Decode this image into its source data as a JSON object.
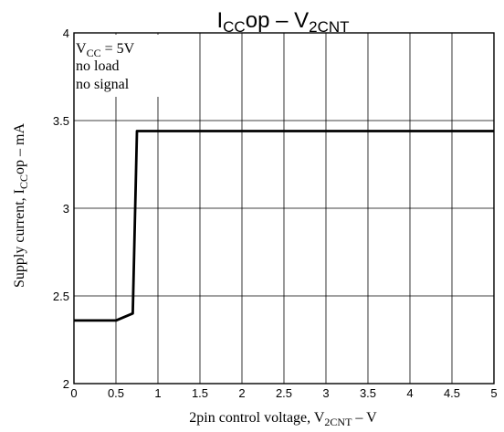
{
  "chart_data": {
    "type": "line",
    "title": {
      "main": "I",
      "sub": "CC",
      "tail": "op  –  V",
      "sub2": "2CNT"
    },
    "xlabel": {
      "pre": "2pin control voltage, V",
      "sub": "2CNT",
      "post": "  –  V"
    },
    "ylabel": {
      "pre": "Supply current, I",
      "sub": "CC",
      "post": "op  –  mA"
    },
    "xlim": [
      0,
      5
    ],
    "ylim": [
      2,
      4
    ],
    "xticks": [
      "0",
      "0.5",
      "1",
      "1.5",
      "2",
      "2.5",
      "3",
      "3.5",
      "4",
      "4.5",
      "5"
    ],
    "yticks": [
      "2",
      "2.5",
      "3",
      "3.5",
      "4"
    ],
    "grid": true,
    "conditions": {
      "line1_pre": "V",
      "line1_sub": "CC",
      "line1_post": " = 5V",
      "line2": "no load",
      "line3": "no signal"
    },
    "series": [
      {
        "x": [
          0,
          0.5,
          0.7,
          0.75,
          1,
          2,
          3,
          4,
          4.5,
          5
        ],
        "y": [
          2.36,
          2.36,
          2.4,
          3.44,
          3.44,
          3.44,
          3.44,
          3.44,
          3.44,
          3.44
        ]
      }
    ]
  }
}
